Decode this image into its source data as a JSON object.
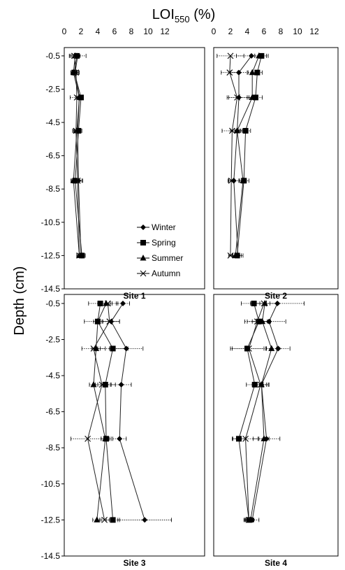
{
  "figure": {
    "x_title": "LOI",
    "x_title_sub": "550",
    "x_title_unit": "(%)",
    "y_title": "Depth (cm)"
  },
  "chart_data": {
    "type": "line",
    "xlim": [
      0,
      12
    ],
    "x_ticks": [
      0,
      2,
      4,
      6,
      8,
      10,
      12
    ],
    "ylim": [
      -14.5,
      0
    ],
    "y_ticks": [
      -0.5,
      -2.5,
      -4.5,
      -6.5,
      -8.5,
      -10.5,
      -12.5,
      -14.5
    ],
    "depths": [
      -0.5,
      -1.5,
      -3,
      -5,
      -8,
      -12.5
    ],
    "legend": {
      "placement": "inside Site 1 panel, lower right",
      "entries": [
        {
          "name": "Winter",
          "marker": "diamond"
        },
        {
          "name": "Spring",
          "marker": "square"
        },
        {
          "name": "Summer",
          "marker": "triangle"
        },
        {
          "name": "Autumn",
          "marker": "x"
        }
      ]
    },
    "panels": [
      {
        "label": "Site 1",
        "series": [
          {
            "name": "Winter",
            "values": [
              1.6,
              1.3,
              1.8,
              1.6,
              1.7,
              2.0
            ],
            "errors": [
              1.0,
              0.5,
              0.4,
              0.5,
              0.5,
              0.5
            ]
          },
          {
            "name": "Spring",
            "values": [
              1.5,
              1.2,
              2.0,
              1.7,
              1.3,
              2.1
            ],
            "errors": [
              0.4,
              0.3,
              0.3,
              0.3,
              0.4,
              0.4
            ]
          },
          {
            "name": "Summer",
            "values": [
              1.3,
              1.1,
              1.8,
              1.5,
              1.1,
              1.8
            ],
            "errors": [
              0.4,
              0.3,
              0.3,
              0.3,
              0.3,
              0.3
            ]
          },
          {
            "name": "Autumn",
            "values": [
              1.2,
              1.4,
              1.5,
              1.4,
              1.6,
              1.8
            ],
            "errors": [
              0.5,
              0.3,
              0.8,
              0.4,
              0.5,
              0.3
            ]
          }
        ]
      },
      {
        "label": "Site 2",
        "series": [
          {
            "name": "Winter",
            "values": [
              4.5,
              3.0,
              3.0,
              2.8,
              2.4,
              2.9
            ],
            "errors": [
              1.8,
              1.0,
              1.2,
              0.8,
              0.6,
              0.6
            ]
          },
          {
            "name": "Spring",
            "values": [
              5.7,
              5.2,
              5.0,
              3.8,
              3.6,
              2.8
            ],
            "errors": [
              0.8,
              0.6,
              0.8,
              0.6,
              0.6,
              0.5
            ]
          },
          {
            "name": "Summer",
            "values": [
              5.4,
              4.6,
              4.6,
              2.8,
              3.5,
              2.6
            ],
            "errors": [
              0.5,
              0.5,
              0.6,
              0.3,
              0.4,
              0.3
            ]
          },
          {
            "name": "Autumn",
            "values": [
              2.0,
              1.9,
              2.8,
              2.2,
              2.1,
              2.0
            ],
            "errors": [
              1.6,
              1.0,
              1.2,
              1.2,
              0.4,
              0.2
            ]
          }
        ]
      },
      {
        "label": "Site 3",
        "series": [
          {
            "name": "Winter",
            "values": [
              7.0,
              5.6,
              7.4,
              6.8,
              6.6,
              9.6
            ],
            "errors": [
              0.8,
              1.0,
              2.0,
              1.2,
              0.8,
              3.2
            ]
          },
          {
            "name": "Spring",
            "values": [
              4.3,
              4.0,
              5.8,
              4.9,
              5.0,
              5.8
            ],
            "errors": [
              1.4,
              1.6,
              1.8,
              1.2,
              0.6,
              0.8
            ]
          },
          {
            "name": "Summer",
            "values": [
              5.0,
              4.0,
              3.8,
              3.5,
              4.9,
              3.9
            ],
            "errors": [
              0.5,
              0.5,
              0.5,
              0.5,
              0.5,
              0.5
            ]
          },
          {
            "name": "Autumn",
            "values": [
              5.2,
              5.4,
              3.5,
              4.5,
              2.8,
              4.8
            ],
            "errors": [
              1.2,
              1.2,
              1.4,
              1.0,
              2.0,
              0.6
            ]
          }
        ]
      },
      {
        "label": "Site 4",
        "series": [
          {
            "name": "Winter",
            "values": [
              7.6,
              6.6,
              7.7,
              5.7,
              6.3,
              4.6
            ],
            "errors": [
              3.2,
              2.0,
              1.4,
              0.8,
              1.6,
              0.8
            ]
          },
          {
            "name": "Spring",
            "values": [
              4.8,
              5.4,
              4.0,
              4.9,
              3.0,
              4.2
            ],
            "errors": [
              1.5,
              1.4,
              2.0,
              1.0,
              0.8,
              0.5
            ]
          },
          {
            "name": "Summer",
            "values": [
              6.1,
              5.8,
              6.9,
              5.7,
              6.0,
              4.4
            ],
            "errors": [
              0.6,
              0.6,
              0.6,
              0.6,
              0.6,
              0.4
            ]
          },
          {
            "name": "Autumn",
            "values": [
              6.0,
              5.2,
              4.2,
              5.6,
              3.8,
              4.2
            ],
            "errors": [
              1.5,
              1.5,
              2.0,
              1.0,
              1.5,
              0.6
            ]
          }
        ]
      }
    ]
  }
}
